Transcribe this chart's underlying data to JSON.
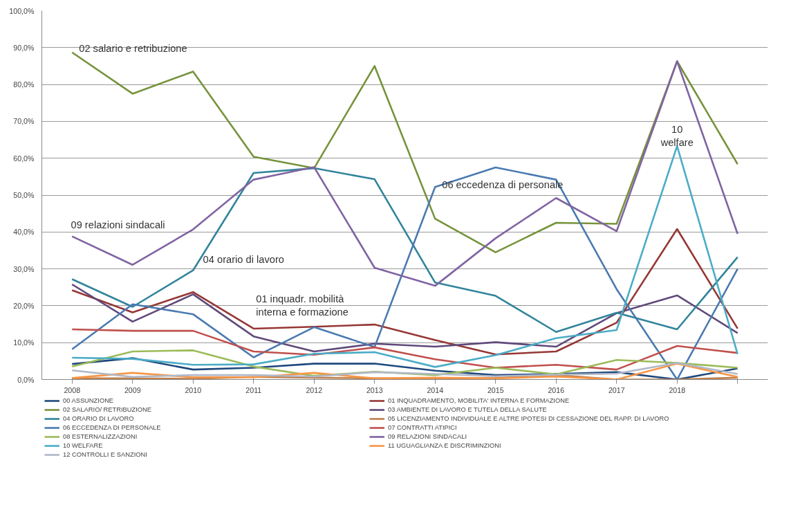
{
  "chart_data": {
    "type": "line",
    "categories": [
      "2008",
      "2009",
      "2010",
      "2011",
      "2012",
      "2013",
      "2014",
      "2015",
      "2016",
      "2017",
      "2018",
      null
    ],
    "ylim": [
      0,
      100
    ],
    "yticks": [
      {
        "value": 0,
        "label": "0,0%"
      },
      {
        "value": 10,
        "label": "10,0%"
      },
      {
        "value": 20,
        "label": "20,0%"
      },
      {
        "value": 30,
        "label": "30,0%"
      },
      {
        "value": 40,
        "label": "40,0%"
      },
      {
        "value": 50,
        "label": "50,0%"
      },
      {
        "value": 60,
        "label": "60,0%"
      },
      {
        "value": 70,
        "label": "70,0%"
      },
      {
        "value": 80,
        "label": "80,0%"
      },
      {
        "value": 90,
        "label": "90,0%"
      },
      {
        "value": 100,
        "label": "100,0%"
      }
    ],
    "grid": "y",
    "legend": "bottom",
    "marker": "none",
    "line_style": "solid",
    "series": [
      {
        "name": "00 ASSUNZIONE",
        "color": "#1f497d",
        "values": [
          4.2,
          5.8,
          2.7,
          3.2,
          4.3,
          4.3,
          2.4,
          1.2,
          1.5,
          2.0,
          0,
          3.0
        ]
      },
      {
        "name": "01 INQUADRAMENTO, MOBILITA' INTERNA E FORMAZIONE",
        "color": "#953735",
        "values": [
          24.2,
          18.2,
          23.7,
          13.8,
          14.3,
          14.9,
          10.7,
          6.8,
          7.6,
          15.4,
          40.8,
          13.8
        ]
      },
      {
        "name": "02 SALARIO/ RETRIBUZIONE",
        "color": "#77933c",
        "values": [
          88.7,
          77.5,
          83.5,
          60.4,
          57.3,
          85.0,
          43.6,
          34.5,
          42.5,
          42.2,
          86.3,
          58.4
        ]
      },
      {
        "name": "03 AMBIENTE DI LAVORO E TUTELA DELLA SALUTE",
        "color": "#5f497a",
        "values": [
          25.8,
          15.7,
          23.1,
          11.7,
          7.6,
          9.7,
          8.9,
          10.1,
          8.9,
          18.0,
          22.8,
          12.6
        ]
      },
      {
        "name": "04 ORARIO DI LAVORO",
        "color": "#31849b",
        "values": [
          27.2,
          19.7,
          29.6,
          56.0,
          57.3,
          54.3,
          26.3,
          22.7,
          12.9,
          18.1,
          13.6,
          33.2
        ]
      },
      {
        "name": "05 LICENZIAMENTO INDIVIDUALE E ALTRE IPOTESI DI CESSAZIONE DEL RAPP. DI LAVORO",
        "color": "#c0804b",
        "values": [
          0.3,
          0.3,
          0.2,
          0.7,
          0.5,
          0.3,
          0.2,
          0.4,
          1.2,
          0,
          0,
          0.5
        ]
      },
      {
        "name": "06 ECCEDENZA DI PERSONALE",
        "color": "#4a7ab0",
        "values": [
          8.2,
          20.4,
          17.7,
          6.0,
          14.2,
          8.8,
          52.2,
          57.5,
          54.2,
          24.5,
          0,
          30.0
        ]
      },
      {
        "name": "07 CONTRATTI ATIPICI",
        "color": "#c0504d",
        "values": [
          13.6,
          13.2,
          13.2,
          7.6,
          6.7,
          8.7,
          5.5,
          3.2,
          4.0,
          2.7,
          9.1,
          7.2
        ]
      },
      {
        "name": "08 ESTERNALIZZAZIONI",
        "color": "#9bbb59",
        "values": [
          3.5,
          7.6,
          7.9,
          3.5,
          1.0,
          2.1,
          1.2,
          3.2,
          1.4,
          5.3,
          4.5,
          3.2
        ]
      },
      {
        "name": "09 RELAZIONI SINDACALI",
        "color": "#8064a2",
        "values": [
          38.8,
          31.1,
          40.7,
          54.2,
          57.6,
          30.3,
          25.4,
          38.3,
          49.2,
          40.2,
          86.3,
          39.5
        ]
      },
      {
        "name": "10 WELFARE",
        "color": "#4bacc6",
        "values": [
          5.9,
          5.6,
          4.0,
          4.1,
          7.0,
          7.4,
          3.4,
          6.6,
          11.2,
          13.4,
          63.3,
          6.9
        ]
      },
      {
        "name": "11 UGUAGLIANZA E DISCRIMINZIONI",
        "color": "#f79646",
        "values": [
          0.4,
          1.8,
          0.6,
          0.6,
          1.8,
          0.3,
          0.5,
          0.3,
          0.8,
          0.0,
          4.3,
          0.7
        ]
      },
      {
        "name": "12 CONTROLLI E SANZIONI",
        "color": "#b0b8c8",
        "values": [
          2.5,
          0.7,
          1.2,
          1.2,
          0.8,
          2.0,
          1.5,
          0.9,
          1.3,
          1.6,
          4.5,
          1.5
        ]
      }
    ],
    "annotations": [
      {
        "text": "02 salario e retribuzione",
        "x": "2008",
        "y": 89
      },
      "09 relazioni sindacali",
      "04   orario di lavoro",
      "01 inquadr. mobilità\ninterna e formazione",
      {
        "text": "06 eccedenza di personale",
        "x": "2014",
        "y": 52
      },
      "10\nwelfare"
    ]
  }
}
